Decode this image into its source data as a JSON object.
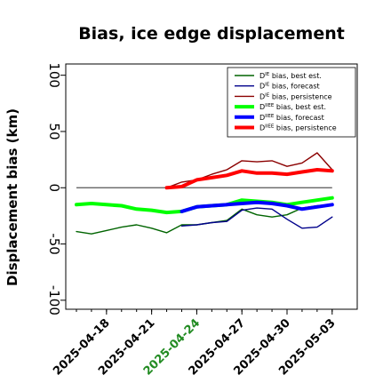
{
  "chart_data": {
    "type": "line",
    "title": "Bias, ice edge displacement",
    "xlabel": "",
    "ylabel": "Displacement bias (km)",
    "ylim": [
      -108,
      110
    ],
    "yticks": [
      -100,
      -50,
      0,
      50,
      100
    ],
    "grid": false,
    "legend_position": "top-right",
    "zero_line": 0,
    "x_dates": [
      "2025-04-16",
      "2025-04-17",
      "2025-04-18",
      "2025-04-19",
      "2025-04-20",
      "2025-04-21",
      "2025-04-22",
      "2025-04-23",
      "2025-04-24",
      "2025-04-25",
      "2025-04-26",
      "2025-04-27",
      "2025-04-28",
      "2025-04-29",
      "2025-04-30",
      "2025-05-01",
      "2025-05-02",
      "2025-05-03"
    ],
    "xlim": [
      "2025-04-15T07:00",
      "2025-05-04T16:00"
    ],
    "zero_line_range": [
      "2025-04-16",
      "2025-05-03"
    ],
    "xtick_labels": [
      "2025-04-18",
      "2025-04-21",
      "2025-04-24",
      "2025-04-27",
      "2025-04-30",
      "2025-05-03"
    ],
    "xtick_colors": [
      "#000000",
      "#000000",
      "#228b22",
      "#000000",
      "#000000",
      "#000000"
    ],
    "series": [
      {
        "name": "D^IE bias, best est.",
        "color": "#006400",
        "width": 1.4,
        "x": [
          "2025-04-16",
          "2025-04-17",
          "2025-04-18",
          "2025-04-19",
          "2025-04-20",
          "2025-04-21",
          "2025-04-22",
          "2025-04-23",
          "2025-04-24",
          "2025-04-25",
          "2025-04-26",
          "2025-04-27",
          "2025-04-28",
          "2025-04-29",
          "2025-04-30",
          "2025-05-01",
          "2025-05-02",
          "2025-05-03"
        ],
        "y": [
          -39,
          -41,
          -38,
          -35,
          -33,
          -36,
          -40,
          -33,
          -33,
          -31,
          -29,
          -19,
          -24,
          -26,
          -24,
          -18,
          -16,
          -15
        ]
      },
      {
        "name": "D^IE bias, forecast",
        "color": "#00008b",
        "width": 1.4,
        "x": [
          "2025-04-23",
          "2025-04-24",
          "2025-04-25",
          "2025-04-26",
          "2025-04-27",
          "2025-04-28",
          "2025-04-29",
          "2025-04-30",
          "2025-05-01",
          "2025-05-02",
          "2025-05-03"
        ],
        "y": [
          -34,
          -33,
          -31,
          -30,
          -20,
          -18,
          -19,
          -28,
          -36,
          -35,
          -26
        ]
      },
      {
        "name": "D^IE bias, persistence",
        "color": "#8b0000",
        "width": 1.4,
        "x": [
          "2025-04-22",
          "2025-04-23",
          "2025-04-24",
          "2025-04-25",
          "2025-04-26",
          "2025-04-27",
          "2025-04-28",
          "2025-04-29",
          "2025-04-30",
          "2025-05-01",
          "2025-05-02",
          "2025-05-03"
        ],
        "y": [
          0,
          5,
          7,
          12,
          16,
          24,
          23,
          24,
          19,
          22,
          31,
          16
        ]
      },
      {
        "name": "D^IIEE bias, best est.",
        "color": "#00ff00",
        "width": 4,
        "x": [
          "2025-04-16",
          "2025-04-17",
          "2025-04-18",
          "2025-04-19",
          "2025-04-20",
          "2025-04-21",
          "2025-04-22",
          "2025-04-23",
          "2025-04-24",
          "2025-04-25",
          "2025-04-26",
          "2025-04-27",
          "2025-04-28",
          "2025-04-29",
          "2025-04-30",
          "2025-05-01",
          "2025-05-02",
          "2025-05-03"
        ],
        "y": [
          -15,
          -14,
          -15,
          -16,
          -19,
          -20,
          -22,
          -21,
          -17,
          -16,
          -15,
          -11,
          -12,
          -13,
          -15,
          -13,
          -11,
          -9
        ]
      },
      {
        "name": "D^IIEE bias, forecast",
        "color": "#0000ff",
        "width": 4,
        "x": [
          "2025-04-23",
          "2025-04-24",
          "2025-04-25",
          "2025-04-26",
          "2025-04-27",
          "2025-04-28",
          "2025-04-29",
          "2025-04-30",
          "2025-05-01",
          "2025-05-02",
          "2025-05-03"
        ],
        "y": [
          -21,
          -17,
          -16,
          -15,
          -14,
          -13,
          -14,
          -16,
          -19,
          -17,
          -15
        ]
      },
      {
        "name": "D^IIEE bias, persistence",
        "color": "#ff0000",
        "width": 4,
        "x": [
          "2025-04-22",
          "2025-04-23",
          "2025-04-24",
          "2025-04-25",
          "2025-04-26",
          "2025-04-27",
          "2025-04-28",
          "2025-04-29",
          "2025-04-30",
          "2025-05-01",
          "2025-05-02",
          "2025-05-03"
        ],
        "y": [
          0,
          1,
          7,
          9,
          11,
          15,
          13,
          13,
          12,
          14,
          16,
          15
        ]
      }
    ],
    "legend_entries": [
      {
        "base": "D",
        "sup": "IE",
        "rest": " bias, best est.",
        "color": "#006400",
        "width": 1.4
      },
      {
        "base": "D",
        "sup": "IE",
        "rest": " bias, forecast",
        "color": "#00008b",
        "width": 1.4
      },
      {
        "base": "D",
        "sup": "IE",
        "rest": " bias, persistence",
        "color": "#8b0000",
        "width": 1.4
      },
      {
        "base": "D",
        "sup": "IIEE",
        "rest": " bias, best est.",
        "color": "#00ff00",
        "width": 4
      },
      {
        "base": "D",
        "sup": "IIEE",
        "rest": " bias, forecast",
        "color": "#0000ff",
        "width": 4
      },
      {
        "base": "D",
        "sup": "IIEE",
        "rest": " bias, persistence",
        "color": "#ff0000",
        "width": 4
      }
    ]
  }
}
